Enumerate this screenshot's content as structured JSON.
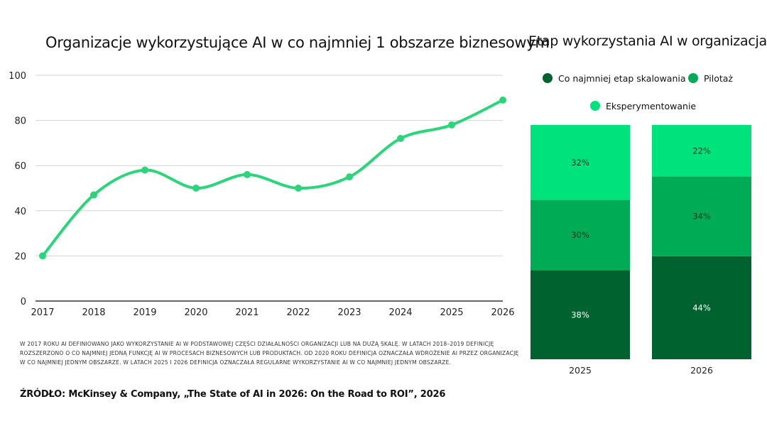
{
  "chart_data": [
    {
      "type": "line",
      "title": "Organizacje wykorzystujące AI w co najmniej 1 obszarze biznesowym",
      "x": [
        "2017",
        "2018",
        "2019",
        "2020",
        "2021",
        "2022",
        "2023",
        "2024",
        "2025",
        "2026"
      ],
      "series": [
        {
          "values": [
            20,
            47,
            58,
            50,
            56,
            50,
            55,
            72,
            78,
            89
          ]
        }
      ],
      "yticks": [
        "0",
        "20",
        "40",
        "60",
        "80",
        "100"
      ],
      "ylim": [
        0,
        100
      ],
      "grid": true,
      "color": "#2bd67b"
    },
    {
      "type": "bar",
      "stacked": true,
      "title": "Etap wykorzystania AI w organizacjach",
      "categories": [
        "2025",
        "2026"
      ],
      "legend": {
        "placement": "top"
      },
      "series": [
        {
          "name": "Co najmniej etap skalowania",
          "values": [
            38,
            44
          ],
          "labels": [
            "38%",
            "44%"
          ],
          "color": "#00622f"
        },
        {
          "name": "Pilotaż",
          "values": [
            30,
            34
          ],
          "labels": [
            "30%",
            "34%"
          ],
          "color": "#00ab56"
        },
        {
          "name": "Eksperymentowanie",
          "values": [
            32,
            22
          ],
          "labels": [
            "32%",
            "22%"
          ],
          "color": "#00e27b"
        }
      ],
      "ylim": [
        0,
        100
      ]
    }
  ],
  "note": "W 2017 roku AI definiowano jako wykorzystanie AI w podstawowej części działalności organizacji lub na dużą skalę. W latach 2018–2019 definicję rozszerzono o co najmniej jedną funkcję AI w procesach biznesowych lub produktach. Od 2020 roku definicja oznaczała wdrożenie AI przez organizację w co najmniej jednym obszarze. W latach 2025 i 2026 definicja oznaczała regularne wykorzystanie AI w co najmniej jednym obszarze.",
  "source": "ŹRÓDŁO: McKinsey & Company, „The State of AI in 2026: On the Road to ROI”, 2026"
}
